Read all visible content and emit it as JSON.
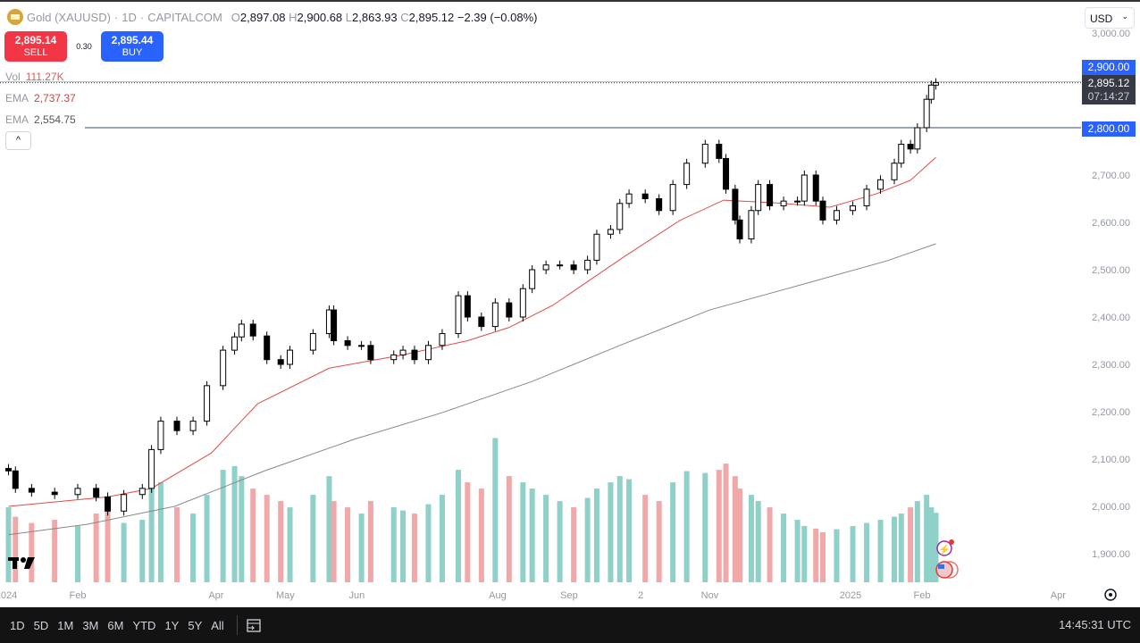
{
  "header": {
    "symbol": "Gold (XAUUSD)",
    "interval": "1D",
    "exchange": "CAPITALCOM",
    "open_label": "O",
    "open": "2,897.08",
    "high_label": "H",
    "high": "2,900.68",
    "low_label": "L",
    "low": "2,863.93",
    "close_label": "C",
    "close": "2,895.12",
    "change": "−2.39 (−0.08%)"
  },
  "trade": {
    "sell_price": "2,895.14",
    "sell_label": "SELL",
    "spread": "0.30",
    "buy_price": "2,895.44",
    "buy_label": "BUY"
  },
  "indicators": {
    "vol_label": "Vol",
    "vol_value": "111.27K",
    "ema1_label": "EMA",
    "ema1_value": "2,737.37",
    "ema2_label": "EMA",
    "ema2_value": "2,554.75"
  },
  "collapse_glyph": "^",
  "currency": "USD",
  "price_badges": {
    "line_2900": "2,900.00",
    "current_price": "2,895.12",
    "countdown": "07:14:27",
    "line_2800": "2,800.00"
  },
  "colors": {
    "up": "#089981",
    "down": "#f23645",
    "vol_up": "#8fd0c8",
    "vol_down": "#f0a8a8",
    "ema_fast": "#e04a4a",
    "ema_slow": "#888888",
    "line_badge": "#2962ff",
    "price_badge": "#363a45"
  },
  "bottom_bar": {
    "ranges": [
      "1D",
      "5D",
      "1M",
      "3M",
      "6M",
      "YTD",
      "1Y",
      "5Y",
      "All"
    ],
    "clock": "14:45:31 UTC"
  },
  "chart_data": {
    "type": "candlestick",
    "ylim": [
      1850,
      3030
    ],
    "y_ticks": [
      "3,000.00",
      "2,700.00",
      "2,600.00",
      "2,500.00",
      "2,400.00",
      "2,300.00",
      "2,200.00",
      "2,100.00",
      "2,000.00",
      "1,900.00"
    ],
    "y_tick_values": [
      3000,
      2700,
      2600,
      2500,
      2400,
      2300,
      2200,
      2100,
      2000,
      1900
    ],
    "x_ticks": [
      {
        "label": "2024",
        "date": "2024-01-01"
      },
      {
        "label": "Feb",
        "date": "2024-02-01"
      },
      {
        "label": "Apr",
        "date": "2024-04-01"
      },
      {
        "label": "May",
        "date": "2024-05-01"
      },
      {
        "label": "Jun",
        "date": "2024-06-01"
      },
      {
        "label": "Aug",
        "date": "2024-08-01"
      },
      {
        "label": "Sep",
        "date": "2024-09-01"
      },
      {
        "label": "2",
        "date": "2024-10-02"
      },
      {
        "label": "Nov",
        "date": "2024-11-01"
      },
      {
        "label": "2025",
        "date": "2025-01-01"
      },
      {
        "label": "Feb",
        "date": "2025-02-01"
      },
      {
        "label": "Apr",
        "date": "2025-04-01"
      }
    ],
    "horizontal_lines": [
      2900,
      2800
    ],
    "current_price": 2895.12,
    "grid": false,
    "close": [
      [
        "2024-01-02",
        2075
      ],
      [
        "2024-01-05",
        2038
      ],
      [
        "2024-01-12",
        2030
      ],
      [
        "2024-01-22",
        2025
      ],
      [
        "2024-02-01",
        2038
      ],
      [
        "2024-02-09",
        2020
      ],
      [
        "2024-02-14",
        1990
      ],
      [
        "2024-02-21",
        2025
      ],
      [
        "2024-02-29",
        2038
      ],
      [
        "2024-03-04",
        2120
      ],
      [
        "2024-03-08",
        2180
      ],
      [
        "2024-03-15",
        2160
      ],
      [
        "2024-03-22",
        2180
      ],
      [
        "2024-03-28",
        2255
      ],
      [
        "2024-04-04",
        2330
      ],
      [
        "2024-04-09",
        2358
      ],
      [
        "2024-04-12",
        2385
      ],
      [
        "2024-04-17",
        2360
      ],
      [
        "2024-04-23",
        2310
      ],
      [
        "2024-04-29",
        2300
      ],
      [
        "2024-05-03",
        2330
      ],
      [
        "2024-05-13",
        2365
      ],
      [
        "2024-05-20",
        2415
      ],
      [
        "2024-05-22",
        2350
      ],
      [
        "2024-05-28",
        2340
      ],
      [
        "2024-06-03",
        2340
      ],
      [
        "2024-06-07",
        2310
      ],
      [
        "2024-06-17",
        2320
      ],
      [
        "2024-06-21",
        2330
      ],
      [
        "2024-06-26",
        2310
      ],
      [
        "2024-07-02",
        2340
      ],
      [
        "2024-07-08",
        2365
      ],
      [
        "2024-07-15",
        2445
      ],
      [
        "2024-07-19",
        2400
      ],
      [
        "2024-07-25",
        2380
      ],
      [
        "2024-07-31",
        2430
      ],
      [
        "2024-08-06",
        2400
      ],
      [
        "2024-08-12",
        2460
      ],
      [
        "2024-08-16",
        2500
      ],
      [
        "2024-08-22",
        2510
      ],
      [
        "2024-08-28",
        2510
      ],
      [
        "2024-09-03",
        2500
      ],
      [
        "2024-09-09",
        2520
      ],
      [
        "2024-09-13",
        2575
      ],
      [
        "2024-09-19",
        2585
      ],
      [
        "2024-09-23",
        2640
      ],
      [
        "2024-09-27",
        2660
      ],
      [
        "2024-10-04",
        2650
      ],
      [
        "2024-10-10",
        2625
      ],
      [
        "2024-10-16",
        2680
      ],
      [
        "2024-10-22",
        2725
      ],
      [
        "2024-10-30",
        2765
      ],
      [
        "2024-11-05",
        2735
      ],
      [
        "2024-11-08",
        2670
      ],
      [
        "2024-11-12",
        2605
      ],
      [
        "2024-11-14",
        2565
      ],
      [
        "2024-11-19",
        2625
      ],
      [
        "2024-11-22",
        2680
      ],
      [
        "2024-11-27",
        2635
      ],
      [
        "2024-12-03",
        2645
      ],
      [
        "2024-12-09",
        2645
      ],
      [
        "2024-12-12",
        2700
      ],
      [
        "2024-12-17",
        2645
      ],
      [
        "2024-12-20",
        2605
      ],
      [
        "2024-12-26",
        2625
      ],
      [
        "2025-01-02",
        2635
      ],
      [
        "2025-01-08",
        2670
      ],
      [
        "2025-01-14",
        2690
      ],
      [
        "2025-01-20",
        2725
      ],
      [
        "2025-01-23",
        2765
      ],
      [
        "2025-01-27",
        2755
      ],
      [
        "2025-01-30",
        2800
      ],
      [
        "2025-02-03",
        2860
      ],
      [
        "2025-02-05",
        2890
      ],
      [
        "2025-02-07",
        2895.12
      ]
    ],
    "volume_k": [
      120,
      105,
      95,
      100,
      90,
      110,
      130,
      95,
      100,
      150,
      160,
      120,
      110,
      140,
      180,
      186,
      170,
      150,
      140,
      130,
      120,
      140,
      170,
      130,
      120,
      110,
      130,
      120,
      115,
      110,
      125,
      140,
      180,
      160,
      150,
      231,
      170,
      160,
      150,
      140,
      130,
      120,
      135,
      150,
      160,
      170,
      165,
      140,
      130,
      160,
      178,
      175,
      180,
      190,
      170,
      150,
      140,
      130,
      120,
      110,
      100,
      90,
      86,
      80,
      85,
      90,
      95,
      100,
      105,
      110,
      120,
      130,
      140,
      120,
      111.27
    ],
    "ema_fast": [
      [
        "2024-01-02",
        2000
      ],
      [
        "2024-02-14",
        2020
      ],
      [
        "2024-03-04",
        2038
      ],
      [
        "2024-03-30",
        2113
      ],
      [
        "2024-04-19",
        2217
      ],
      [
        "2024-05-20",
        2292
      ],
      [
        "2024-06-21",
        2320
      ],
      [
        "2024-07-19",
        2350
      ],
      [
        "2024-08-06",
        2378
      ],
      [
        "2024-08-25",
        2425
      ],
      [
        "2024-09-25",
        2528
      ],
      [
        "2024-10-19",
        2604
      ],
      [
        "2024-11-07",
        2647
      ],
      [
        "2024-11-30",
        2641
      ],
      [
        "2024-12-23",
        2632
      ],
      [
        "2025-01-12",
        2660
      ],
      [
        "2025-01-27",
        2689
      ],
      [
        "2025-02-07",
        2737.37
      ]
    ],
    "ema_slow": [
      [
        "2024-01-02",
        1940
      ],
      [
        "2024-02-05",
        1962
      ],
      [
        "2024-03-14",
        2000
      ],
      [
        "2024-04-22",
        2075
      ],
      [
        "2024-05-31",
        2142
      ],
      [
        "2024-07-08",
        2198
      ],
      [
        "2024-08-16",
        2264
      ],
      [
        "2024-09-23",
        2340
      ],
      [
        "2024-11-01",
        2415
      ],
      [
        "2024-12-09",
        2466
      ],
      [
        "2025-01-17",
        2519
      ],
      [
        "2025-02-07",
        2554.75
      ]
    ]
  }
}
